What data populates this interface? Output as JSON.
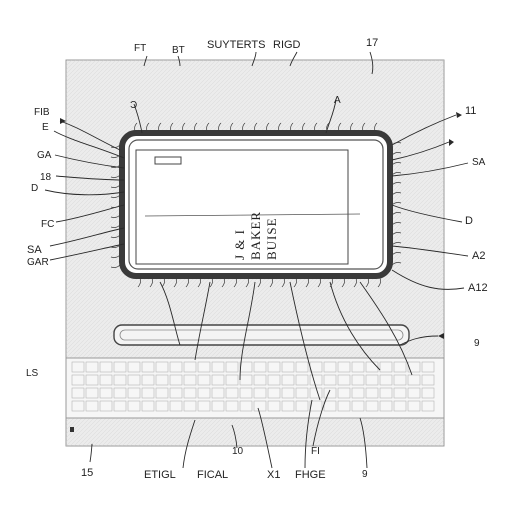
{
  "header": {
    "labels_top": [
      {
        "id": "ft",
        "text": "FT"
      },
      {
        "id": "bt",
        "text": "BT"
      },
      {
        "id": "suyterts",
        "text": "SUYTERTS"
      },
      {
        "id": "rigd",
        "text": "RIGD"
      },
      {
        "id": "n17",
        "text": "17"
      }
    ]
  },
  "left_labels": [
    {
      "id": "fib",
      "text": "FIB"
    },
    {
      "id": "e",
      "text": "E"
    },
    {
      "id": "ga",
      "text": "GA"
    },
    {
      "id": "n18",
      "text": "18"
    },
    {
      "id": "d",
      "text": "D"
    },
    {
      "id": "fc",
      "text": "FC"
    },
    {
      "id": "sa",
      "text": "SA"
    },
    {
      "id": "gar",
      "text": "GAR"
    },
    {
      "id": "ls",
      "text": "LS"
    }
  ],
  "right_labels": [
    {
      "id": "n11",
      "text": "11"
    },
    {
      "id": "sa_r",
      "text": "SA"
    },
    {
      "id": "d_r",
      "text": "D"
    },
    {
      "id": "n2",
      "text": "A2"
    },
    {
      "id": "n12",
      "text": "A12"
    },
    {
      "id": "n9",
      "text": "9"
    }
  ],
  "inner_labels": [
    {
      "id": "a_top",
      "text": "A"
    },
    {
      "id": "tt",
      "text": "Ɔ"
    }
  ],
  "bottom_labels": [
    {
      "id": "n15",
      "text": "15"
    },
    {
      "id": "etigl",
      "text": "ETIGL"
    },
    {
      "id": "n10",
      "text": "10"
    },
    {
      "id": "fical",
      "text": "FICAL"
    },
    {
      "id": "x1",
      "text": "X1"
    },
    {
      "id": "fi",
      "text": "FI"
    },
    {
      "id": "fhge",
      "text": "FHGE"
    },
    {
      "id": "n9b",
      "text": "9"
    }
  ],
  "screen": {
    "text": "J & I BAKER BUISE"
  },
  "colors": {
    "ink": "#2a2a2a",
    "panel": "#ececec",
    "frame": "#3a3a3a",
    "screen": "#ffffff",
    "keyboard": "#f4f4f4"
  }
}
